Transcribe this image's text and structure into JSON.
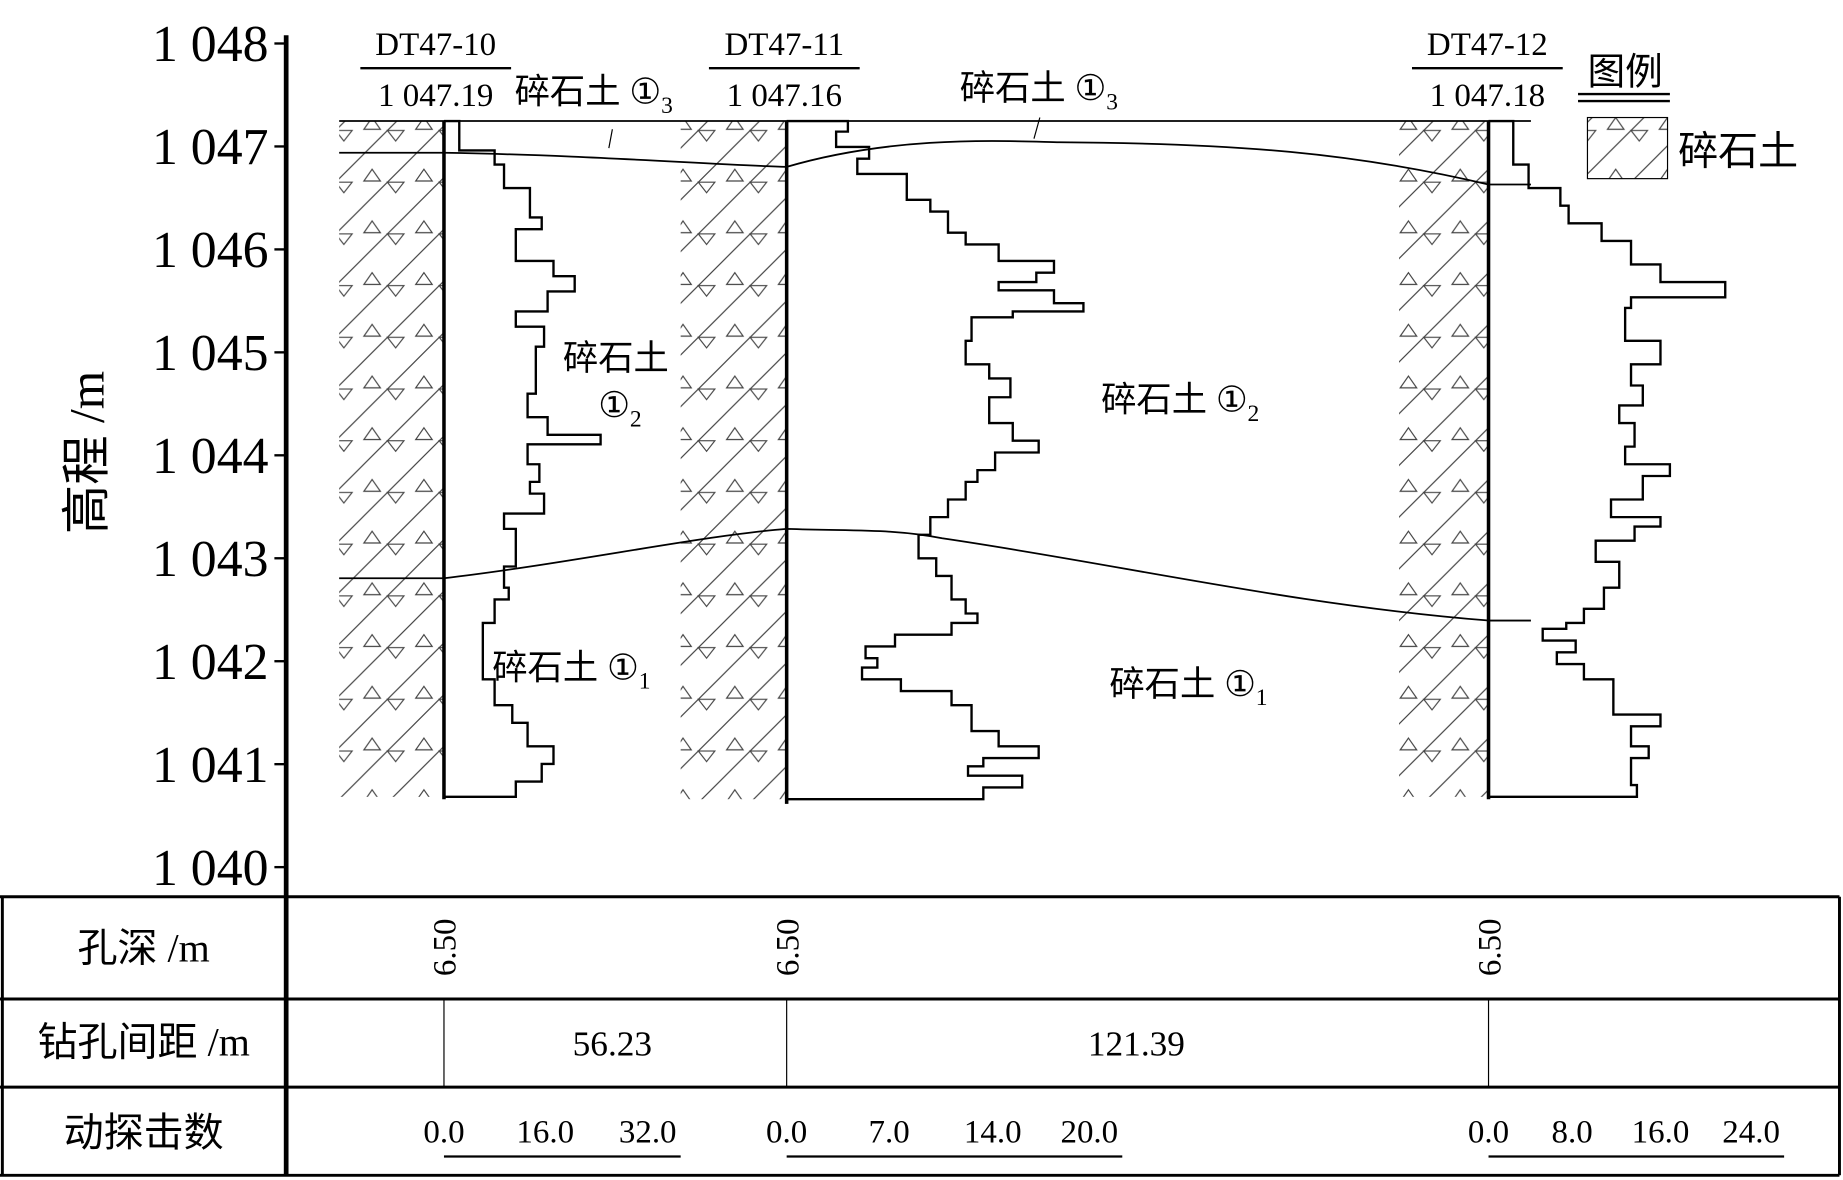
{
  "y_axis": {
    "title": "高程 /m",
    "ticks": [
      "1 048",
      "1 047",
      "1 046",
      "1 045",
      "1 044",
      "1 043",
      "1 042",
      "1 041",
      "1 040"
    ]
  },
  "boreholes": [
    {
      "id": "DT47-10",
      "elevation": "1 047.19",
      "depth": "6.50",
      "scale": [
        "0.0",
        "16.0",
        "32.0"
      ]
    },
    {
      "id": "DT47-11",
      "elevation": "1 047.16",
      "depth": "6.50",
      "scale": [
        "0.0",
        "7.0",
        "14.0",
        "20.0"
      ]
    },
    {
      "id": "DT47-12",
      "elevation": "1 047.18",
      "depth": "6.50",
      "scale": [
        "0.0",
        "8.0",
        "16.0",
        "24.0"
      ]
    }
  ],
  "layers": {
    "name": "碎石土",
    "circle": "①",
    "subs": [
      "3",
      "2",
      "1"
    ]
  },
  "spacings": [
    "56.23",
    "121.39"
  ],
  "legend": {
    "title": "图例",
    "item": "碎石土"
  },
  "table": {
    "rows": [
      "孔深 /m",
      "钻孔间距 /m",
      "动探击数"
    ]
  }
}
